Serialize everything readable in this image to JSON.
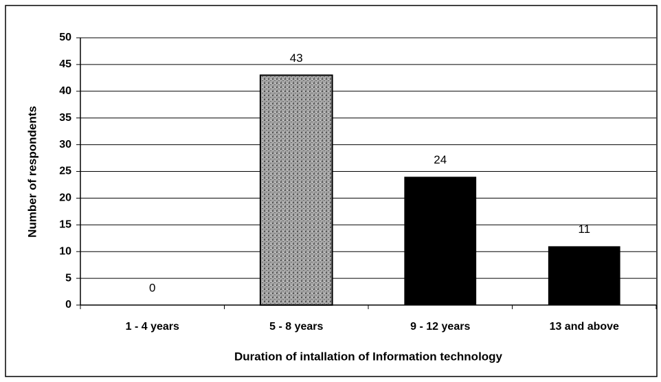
{
  "chart_data": {
    "type": "bar",
    "categories": [
      "1 - 4 years",
      "5 - 8 years",
      "9 - 12 years",
      "13 and above"
    ],
    "values": [
      0,
      43,
      24,
      11
    ],
    "colors": [
      "#000000",
      "#9a9a9a",
      "#000000",
      "#000000"
    ],
    "xlabel": "Duration of intallation of Information technology",
    "ylabel": "Number of respondents",
    "ylim": [
      0,
      50
    ],
    "yticks": [
      0,
      5,
      10,
      15,
      20,
      25,
      30,
      35,
      40,
      45,
      50
    ],
    "grid": true
  }
}
